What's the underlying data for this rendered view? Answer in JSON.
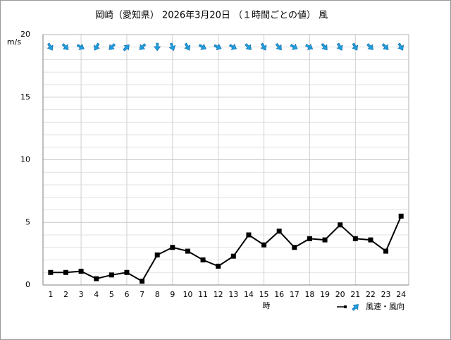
{
  "chart_data": {
    "type": "line",
    "title": "岡崎（愛知県） 2026年3月20日 （１時間ごとの値） 風",
    "y_unit": "m/s",
    "x_label": "時",
    "categories": [
      "1",
      "2",
      "3",
      "4",
      "5",
      "6",
      "7",
      "8",
      "9",
      "10",
      "11",
      "12",
      "13",
      "14",
      "15",
      "16",
      "17",
      "18",
      "19",
      "20",
      "21",
      "22",
      "23",
      "24"
    ],
    "series": [
      {
        "name": "風速・風向",
        "color": "#000000",
        "arrow_color": "#1e9fe0",
        "values": [
          1.0,
          1.0,
          1.1,
          0.5,
          0.8,
          1.0,
          0.3,
          2.4,
          3.0,
          2.7,
          2.0,
          1.5,
          2.3,
          4.0,
          3.2,
          4.3,
          3.0,
          3.7,
          3.6,
          4.8,
          3.7,
          3.6,
          2.7,
          5.5
        ],
        "directions": [
          150,
          135,
          120,
          210,
          225,
          45,
          225,
          180,
          160,
          150,
          120,
          115,
          120,
          135,
          150,
          140,
          120,
          120,
          140,
          150,
          150,
          135,
          135,
          150
        ]
      }
    ],
    "ylim": [
      0,
      20
    ],
    "yticks": [
      0,
      5,
      10,
      15,
      20
    ],
    "grid": true
  }
}
